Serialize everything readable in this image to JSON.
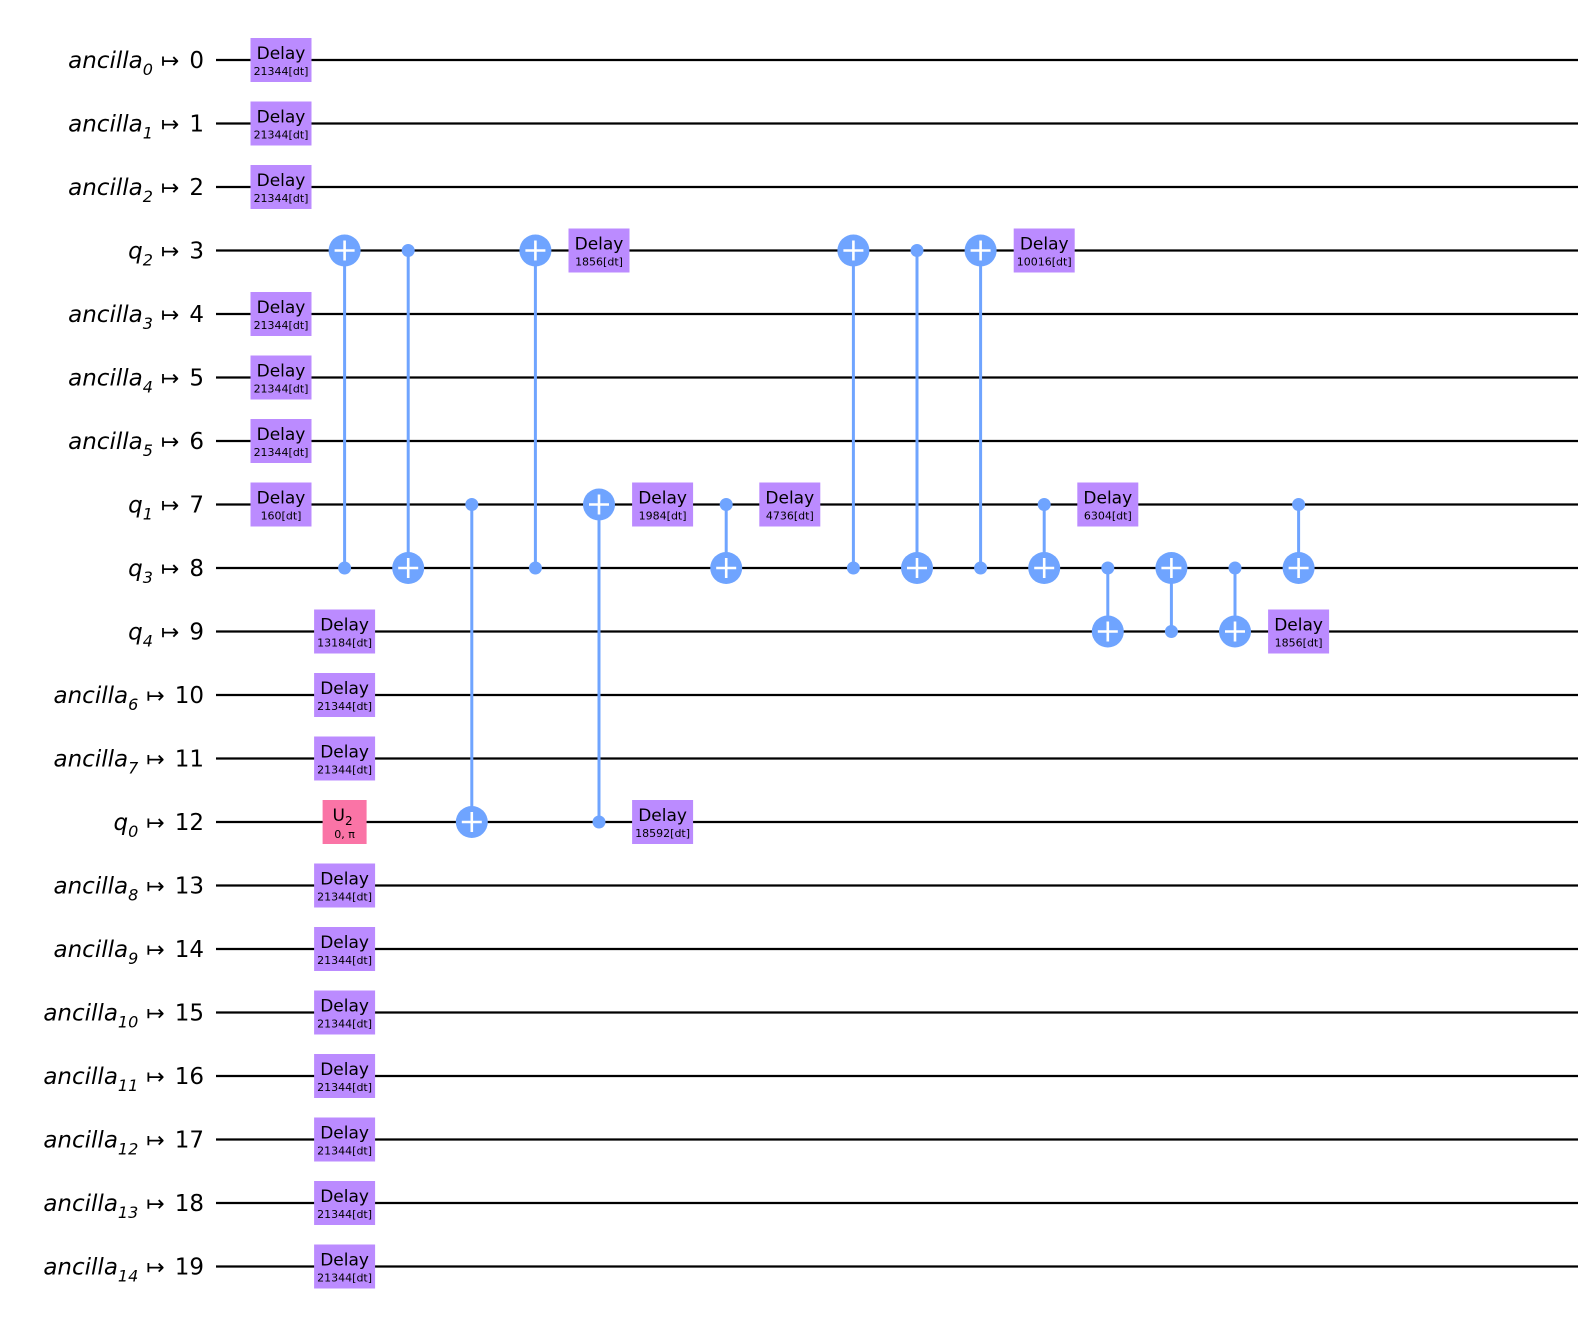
{
  "colors": {
    "delay": "#BB8BFF",
    "u2": "#FA74A6",
    "cx": "#6FA4FF",
    "wire": "#000000"
  },
  "qubits": [
    {
      "name": "ancilla",
      "sub": "0",
      "index": "0"
    },
    {
      "name": "ancilla",
      "sub": "1",
      "index": "1"
    },
    {
      "name": "ancilla",
      "sub": "2",
      "index": "2"
    },
    {
      "name": "q",
      "sub": "2",
      "index": "3"
    },
    {
      "name": "ancilla",
      "sub": "3",
      "index": "4"
    },
    {
      "name": "ancilla",
      "sub": "4",
      "index": "5"
    },
    {
      "name": "ancilla",
      "sub": "5",
      "index": "6"
    },
    {
      "name": "q",
      "sub": "1",
      "index": "7"
    },
    {
      "name": "q",
      "sub": "3",
      "index": "8"
    },
    {
      "name": "q",
      "sub": "4",
      "index": "9"
    },
    {
      "name": "ancilla",
      "sub": "6",
      "index": "10"
    },
    {
      "name": "ancilla",
      "sub": "7",
      "index": "11"
    },
    {
      "name": "q",
      "sub": "0",
      "index": "12"
    },
    {
      "name": "ancilla",
      "sub": "8",
      "index": "13"
    },
    {
      "name": "ancilla",
      "sub": "9",
      "index": "14"
    },
    {
      "name": "ancilla",
      "sub": "10",
      "index": "15"
    },
    {
      "name": "ancilla",
      "sub": "11",
      "index": "16"
    },
    {
      "name": "ancilla",
      "sub": "12",
      "index": "17"
    },
    {
      "name": "ancilla",
      "sub": "13",
      "index": "18"
    },
    {
      "name": "ancilla",
      "sub": "14",
      "index": "19"
    }
  ],
  "map_symbol": "↦",
  "gates": [
    {
      "type": "delay",
      "column": 0,
      "qubit": 0,
      "label": "Delay",
      "param": "21344[dt]"
    },
    {
      "type": "delay",
      "column": 0,
      "qubit": 1,
      "label": "Delay",
      "param": "21344[dt]"
    },
    {
      "type": "delay",
      "column": 0,
      "qubit": 2,
      "label": "Delay",
      "param": "21344[dt]"
    },
    {
      "type": "delay",
      "column": 0,
      "qubit": 4,
      "label": "Delay",
      "param": "21344[dt]"
    },
    {
      "type": "delay",
      "column": 0,
      "qubit": 5,
      "label": "Delay",
      "param": "21344[dt]"
    },
    {
      "type": "delay",
      "column": 0,
      "qubit": 6,
      "label": "Delay",
      "param": "21344[dt]"
    },
    {
      "type": "delay",
      "column": 0,
      "qubit": 7,
      "label": "Delay",
      "param": "160[dt]"
    },
    {
      "type": "cx",
      "column": 1,
      "control": 8,
      "target": 3
    },
    {
      "type": "delay",
      "column": 1,
      "qubit": 9,
      "label": "Delay",
      "param": "13184[dt]"
    },
    {
      "type": "delay",
      "column": 1,
      "qubit": 10,
      "label": "Delay",
      "param": "21344[dt]"
    },
    {
      "type": "delay",
      "column": 1,
      "qubit": 11,
      "label": "Delay",
      "param": "21344[dt]"
    },
    {
      "type": "u2",
      "column": 1,
      "qubit": 12,
      "label": "U",
      "sub": "2",
      "param": "0, π"
    },
    {
      "type": "delay",
      "column": 1,
      "qubit": 13,
      "label": "Delay",
      "param": "21344[dt]"
    },
    {
      "type": "delay",
      "column": 1,
      "qubit": 14,
      "label": "Delay",
      "param": "21344[dt]"
    },
    {
      "type": "delay",
      "column": 1,
      "qubit": 15,
      "label": "Delay",
      "param": "21344[dt]"
    },
    {
      "type": "delay",
      "column": 1,
      "qubit": 16,
      "label": "Delay",
      "param": "21344[dt]"
    },
    {
      "type": "delay",
      "column": 1,
      "qubit": 17,
      "label": "Delay",
      "param": "21344[dt]"
    },
    {
      "type": "delay",
      "column": 1,
      "qubit": 18,
      "label": "Delay",
      "param": "21344[dt]"
    },
    {
      "type": "delay",
      "column": 1,
      "qubit": 19,
      "label": "Delay",
      "param": "21344[dt]"
    },
    {
      "type": "cx",
      "column": 2,
      "control": 3,
      "target": 8
    },
    {
      "type": "cx",
      "column": 3,
      "control": 7,
      "target": 12
    },
    {
      "type": "cx",
      "column": 4,
      "control": 8,
      "target": 3
    },
    {
      "type": "delay",
      "column": 5,
      "qubit": 3,
      "label": "Delay",
      "param": "1856[dt]"
    },
    {
      "type": "cx",
      "column": 5,
      "control": 12,
      "target": 7
    },
    {
      "type": "delay",
      "column": 6,
      "qubit": 7,
      "label": "Delay",
      "param": "1984[dt]"
    },
    {
      "type": "delay",
      "column": 6,
      "qubit": 12,
      "label": "Delay",
      "param": "18592[dt]"
    },
    {
      "type": "cx",
      "column": 7,
      "control": 7,
      "target": 8
    },
    {
      "type": "delay",
      "column": 8,
      "qubit": 7,
      "label": "Delay",
      "param": "4736[dt]"
    },
    {
      "type": "cx",
      "column": 9,
      "control": 8,
      "target": 3
    },
    {
      "type": "cx",
      "column": 10,
      "control": 3,
      "target": 8
    },
    {
      "type": "cx",
      "column": 11,
      "control": 8,
      "target": 3
    },
    {
      "type": "delay",
      "column": 12,
      "qubit": 3,
      "label": "Delay",
      "param": "10016[dt]"
    },
    {
      "type": "cx",
      "column": 12,
      "control": 7,
      "target": 8
    },
    {
      "type": "delay",
      "column": 13,
      "qubit": 7,
      "label": "Delay",
      "param": "6304[dt]"
    },
    {
      "type": "cx",
      "column": 13,
      "control": 8,
      "target": 9
    },
    {
      "type": "cx",
      "column": 14,
      "control": 9,
      "target": 8
    },
    {
      "type": "cx",
      "column": 15,
      "control": 8,
      "target": 9
    },
    {
      "type": "cx",
      "column": 16,
      "control": 7,
      "target": 8
    },
    {
      "type": "delay",
      "column": 16,
      "qubit": 9,
      "label": "Delay",
      "param": "1856[dt]"
    }
  ]
}
